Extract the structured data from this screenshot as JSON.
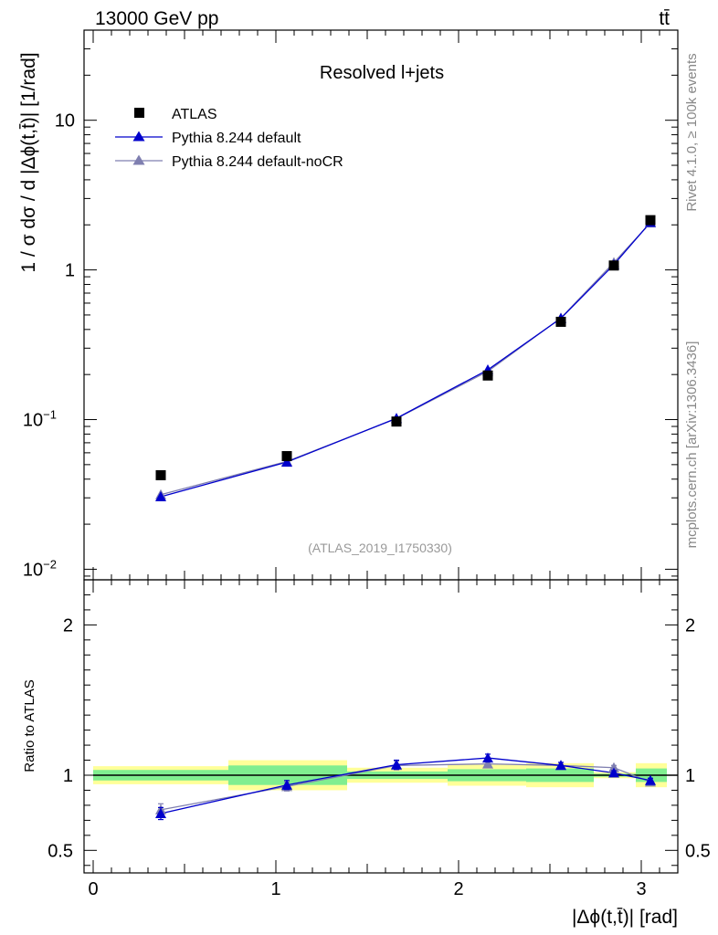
{
  "header": {
    "left": "13000 GeV pp",
    "right": "tt̄"
  },
  "side_labels": {
    "rivet": "Rivet 4.1.0, ≥ 100k events",
    "mcplots": "mcplots.cern.ch [arXiv:1306.3436]"
  },
  "chart_data": [
    {
      "type": "scatter",
      "title": "Resolved l+jets",
      "analysis_label": "(ATLAS_2019_I1750330)",
      "ylabel": "1 / σ dσ / d |Δϕ(t,t̄)| [1/rad]",
      "xlabel": "",
      "yscale": "log",
      "ylim": [
        0.0085,
        40
      ],
      "xlim": [
        -0.05,
        3.2
      ],
      "y_ticks": [
        {
          "value": 10,
          "label": "10"
        },
        {
          "value": 1,
          "label": "1"
        },
        {
          "value": 0.1,
          "label": "10",
          "exp": "−1"
        },
        {
          "value": 0.01,
          "label": "10",
          "exp": "−2"
        }
      ],
      "x": [
        0.37,
        1.06,
        1.66,
        2.16,
        2.56,
        2.85,
        3.05
      ],
      "series": [
        {
          "name": "ATLAS",
          "marker": "square",
          "color": "#000000",
          "values": [
            0.0425,
            0.057,
            0.097,
            0.197,
            0.45,
            1.07,
            2.15
          ]
        },
        {
          "name": "Pythia 8.244 default",
          "marker": "triangle",
          "color": "#0000cc",
          "values": [
            0.0305,
            0.052,
            0.102,
            0.215,
            0.475,
            1.085,
            2.08
          ],
          "errors": [
            0.0012,
            0.0015,
            0.002,
            0.004,
            0.008,
            0.015,
            0.03
          ]
        },
        {
          "name": "Pythia 8.244 default-noCR",
          "marker": "triangle",
          "color": "#7f7fb0",
          "values": [
            0.0315,
            0.0525,
            0.1015,
            0.21,
            0.477,
            1.12,
            2.06
          ],
          "errors": [
            0.0012,
            0.0015,
            0.002,
            0.004,
            0.008,
            0.015,
            0.03
          ]
        }
      ]
    },
    {
      "type": "scatter",
      "title": "",
      "ylabel": "Ratio to ATLAS",
      "xlabel": "|Δϕ(t,t̄)| [rad]",
      "ylim": [
        0.35,
        2.3
      ],
      "xlim": [
        -0.05,
        3.2
      ],
      "x_ticks": [
        0,
        1,
        2,
        3
      ],
      "y_ticks": [
        {
          "value": 2,
          "label": "2"
        },
        {
          "value": 1,
          "label": "1"
        },
        {
          "value": 0.5,
          "label": "0.5"
        }
      ],
      "bins": [
        {
          "x_low": 0.0,
          "x_high": 0.74,
          "yellow": [
            0.94,
            1.06
          ],
          "green": [
            0.965,
            1.035
          ]
        },
        {
          "x_low": 0.74,
          "x_high": 1.39,
          "yellow": [
            0.9,
            1.1
          ],
          "green": [
            0.935,
            1.065
          ]
        },
        {
          "x_low": 1.39,
          "x_high": 1.94,
          "yellow": [
            0.95,
            1.05
          ],
          "green": [
            0.975,
            1.025
          ]
        },
        {
          "x_low": 1.94,
          "x_high": 2.37,
          "yellow": [
            0.93,
            1.07
          ],
          "green": [
            0.96,
            1.04
          ]
        },
        {
          "x_low": 2.37,
          "x_high": 2.74,
          "yellow": [
            0.92,
            1.08
          ],
          "green": [
            0.955,
            1.045
          ]
        },
        {
          "x_low": 2.74,
          "x_high": 2.97,
          "yellow": [
            0.98,
            1.02
          ],
          "green": [
            0.99,
            1.01
          ]
        },
        {
          "x_low": 2.97,
          "x_high": 3.14,
          "yellow": [
            0.92,
            1.08
          ],
          "green": [
            0.955,
            1.045
          ]
        }
      ],
      "x": [
        0.37,
        1.06,
        1.66,
        2.16,
        2.56,
        2.85,
        3.05
      ],
      "series": [
        {
          "name": "Pythia 8.244 default",
          "marker": "triangle",
          "color": "#0000cc",
          "values": [
            0.745,
            0.935,
            1.07,
            1.115,
            1.065,
            1.015,
            0.965
          ],
          "errors": [
            0.04,
            0.03,
            0.03,
            0.025,
            0.02,
            0.015,
            0.015
          ]
        },
        {
          "name": "Pythia 8.244 default-noCR",
          "marker": "triangle",
          "color": "#7f7fb0",
          "values": [
            0.77,
            0.925,
            1.065,
            1.075,
            1.065,
            1.05,
            0.955
          ],
          "errors": [
            0.04,
            0.03,
            0.03,
            0.025,
            0.02,
            0.015,
            0.015
          ]
        }
      ]
    }
  ]
}
